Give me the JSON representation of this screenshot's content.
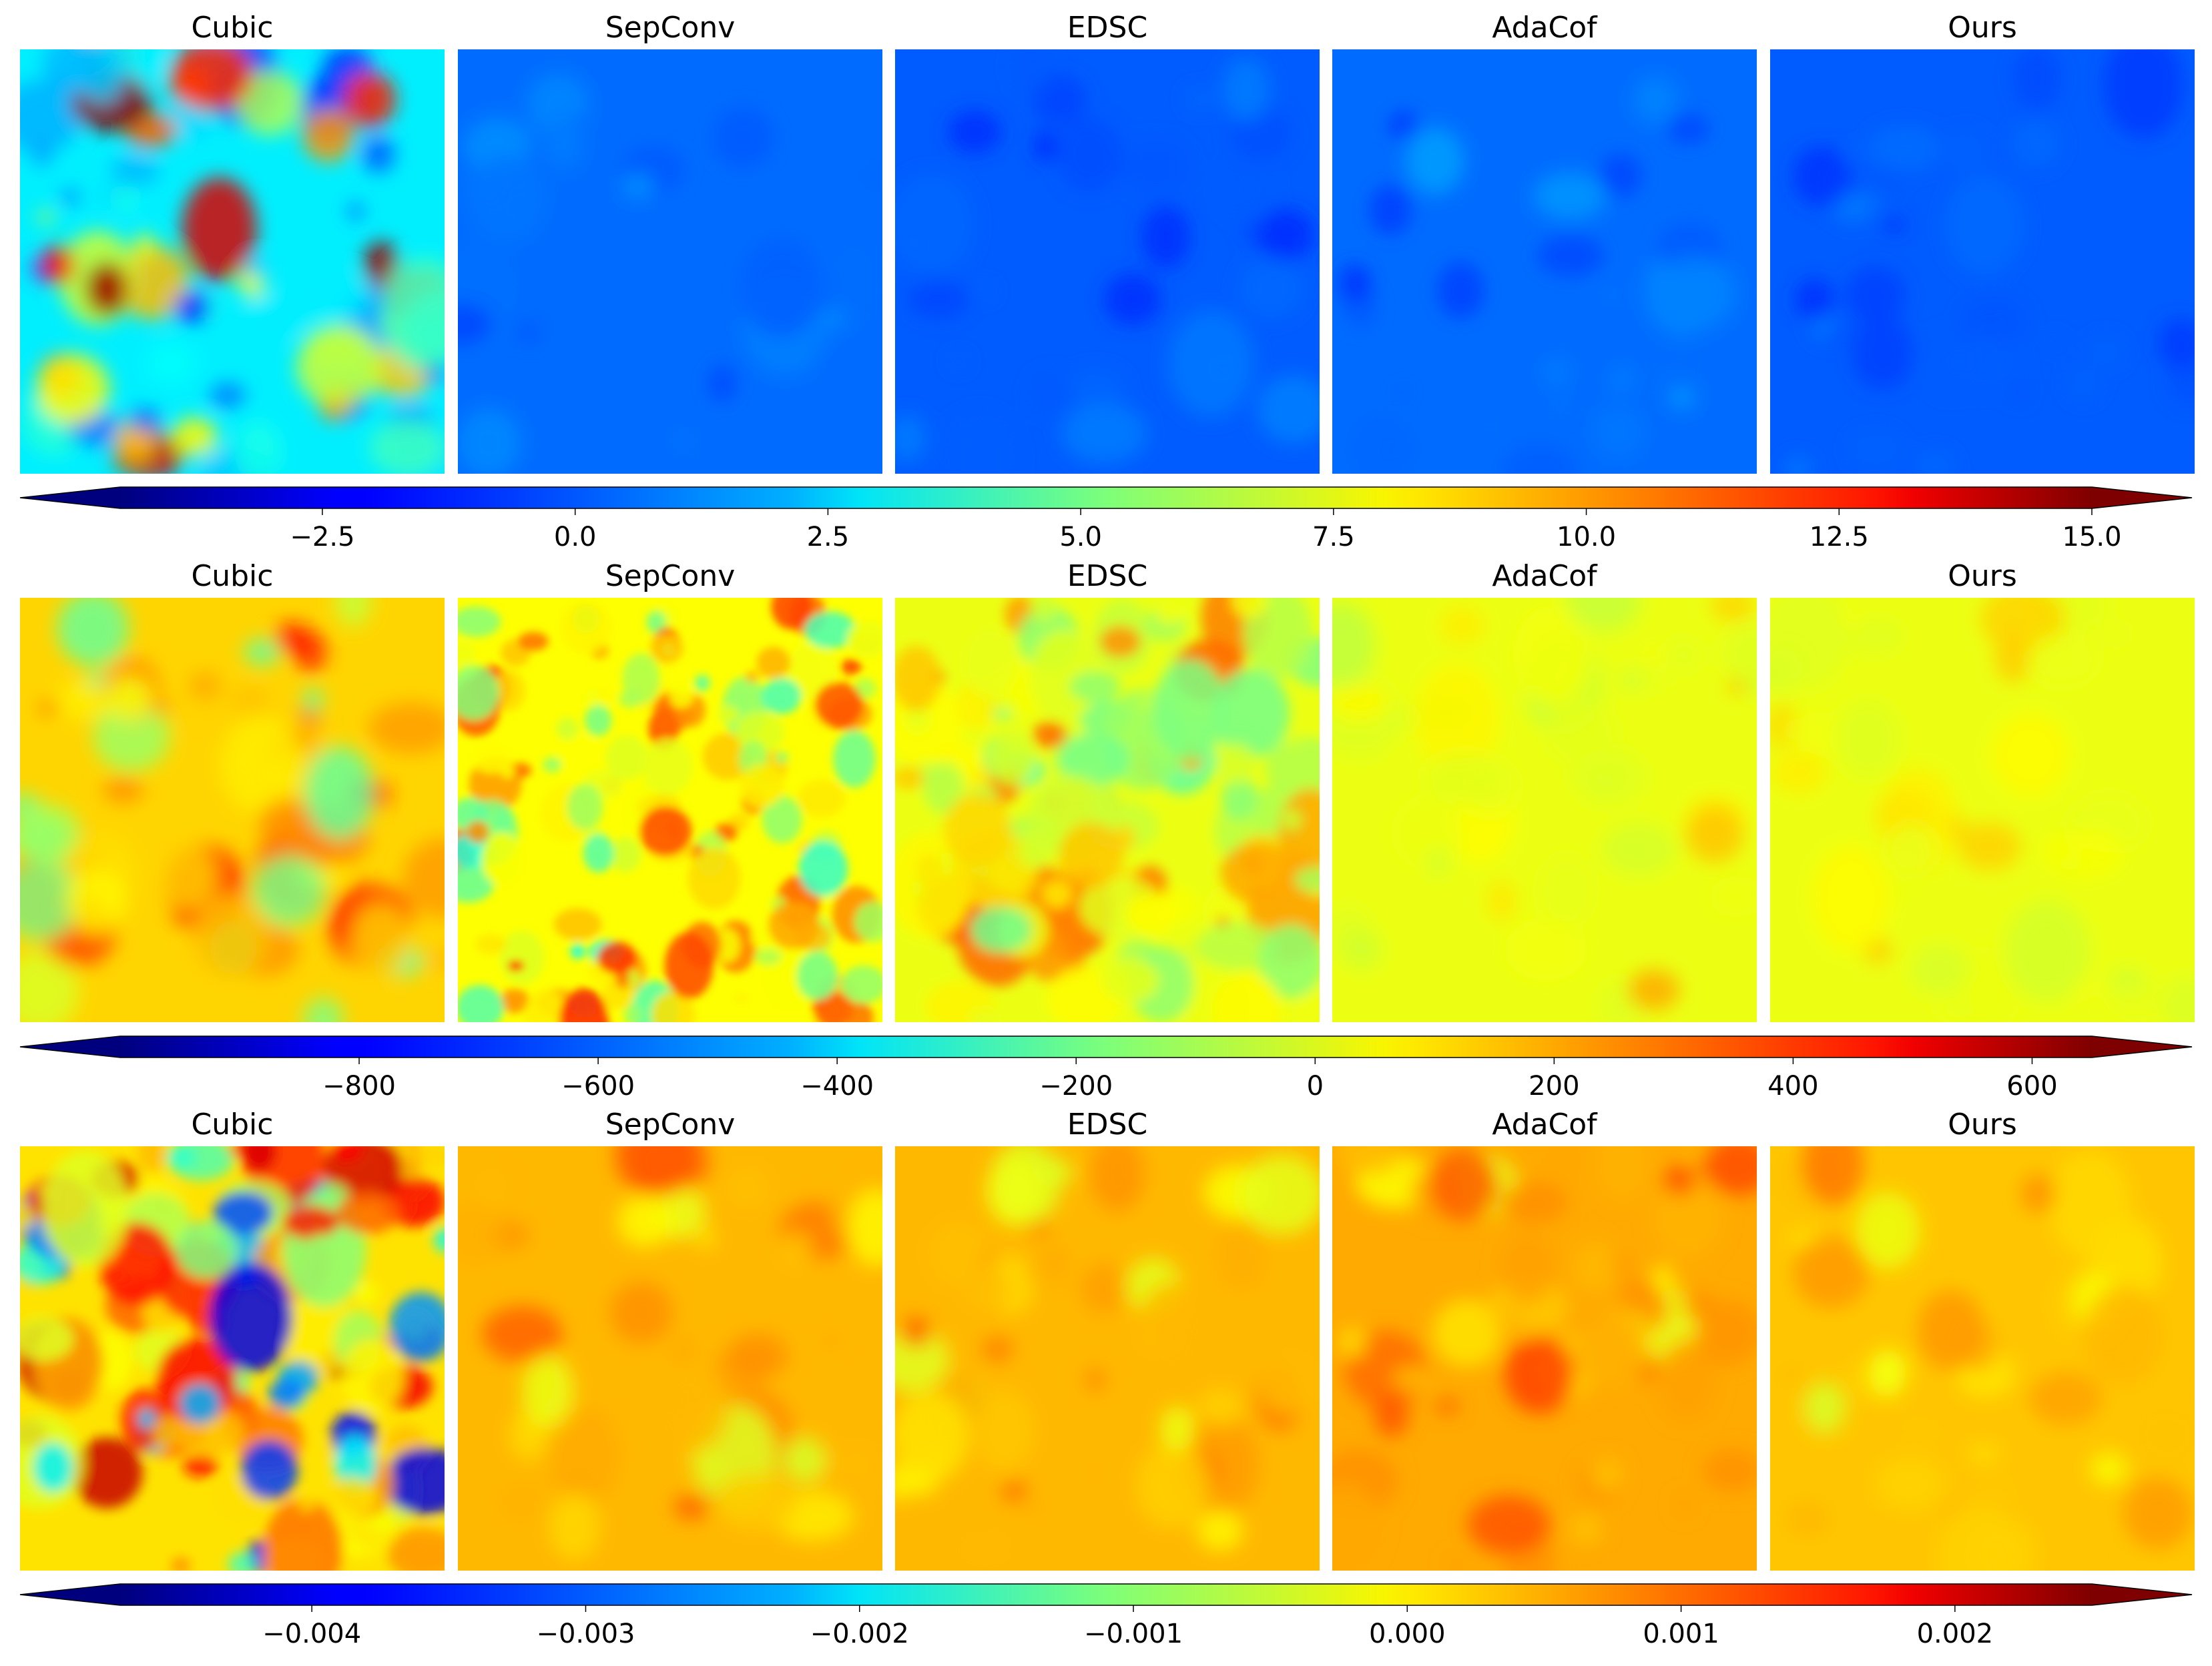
{
  "chart_data": [
    {
      "type": "heatmap",
      "row": 1,
      "panel_titles": [
        "Cubic",
        "SepConv",
        "EDSC",
        "AdaCof",
        "Ours"
      ],
      "colormap": "jet",
      "vmin": -4.5,
      "vmax": 15.0,
      "colorbar_extend": "both",
      "colorbar_ticks": [
        -2.5,
        0.0,
        2.5,
        5.0,
        7.5,
        10.0,
        12.5,
        15.0
      ],
      "colorbar_tick_labels": [
        "−2.5",
        "0.0",
        "2.5",
        "5.0",
        "7.5",
        "10.0",
        "12.5",
        "15.0"
      ],
      "panel_value_summary": [
        {
          "name": "Cubic",
          "typical": 2.5,
          "min": -1.5,
          "max": 15.0
        },
        {
          "name": "SepConv",
          "typical": 0.0,
          "min": -0.8,
          "max": 0.8
        },
        {
          "name": "EDSC",
          "typical": -0.3,
          "min": -1.5,
          "max": 0.5
        },
        {
          "name": "AdaCof",
          "typical": 0.0,
          "min": -1.2,
          "max": 1.0
        },
        {
          "name": "Ours",
          "typical": -0.3,
          "min": -1.2,
          "max": 0.5
        }
      ]
    },
    {
      "type": "heatmap",
      "row": 2,
      "panel_titles": [
        "Cubic",
        "SepConv",
        "EDSC",
        "AdaCof",
        "Ours"
      ],
      "colormap": "jet",
      "vmin": -1000,
      "vmax": 650,
      "colorbar_extend": "both",
      "colorbar_ticks": [
        -800,
        -600,
        -400,
        -200,
        0,
        200,
        400,
        600
      ],
      "colorbar_tick_labels": [
        "−800",
        "−600",
        "−400",
        "−200",
        "0",
        "200",
        "400",
        "600"
      ],
      "panel_value_summary": [
        {
          "name": "Cubic",
          "typical": 100,
          "min": -250,
          "max": 420
        },
        {
          "name": "SepConv",
          "typical": 30,
          "min": -350,
          "max": 420
        },
        {
          "name": "EDSC",
          "typical": 0,
          "min": -250,
          "max": 300
        },
        {
          "name": "AdaCof",
          "typical": 0,
          "min": -80,
          "max": 180
        },
        {
          "name": "Ours",
          "typical": 0,
          "min": -60,
          "max": 120
        }
      ]
    },
    {
      "type": "heatmap",
      "row": 3,
      "panel_titles": [
        "Cubic",
        "SepConv",
        "EDSC",
        "AdaCof",
        "Ours"
      ],
      "colormap": "jet",
      "vmin": -0.0047,
      "vmax": 0.0025,
      "colorbar_extend": "both",
      "colorbar_ticks": [
        -0.004,
        -0.003,
        -0.002,
        -0.001,
        0.0,
        0.001,
        0.002
      ],
      "colorbar_tick_labels": [
        "−0.004",
        "−0.003",
        "−0.002",
        "−0.001",
        "0.000",
        "0.001",
        "0.002"
      ],
      "panel_value_summary": [
        {
          "name": "Cubic",
          "typical": 0.0,
          "min": -0.004,
          "max": 0.002
        },
        {
          "name": "SepConv",
          "typical": 0.0003,
          "min": -0.0005,
          "max": 0.001
        },
        {
          "name": "EDSC",
          "typical": 0.0003,
          "min": -0.0005,
          "max": 0.001
        },
        {
          "name": "AdaCof",
          "typical": 0.0004,
          "min": -0.0005,
          "max": 0.0012
        },
        {
          "name": "Ours",
          "typical": 0.0002,
          "min": -0.0005,
          "max": 0.0009
        }
      ]
    }
  ]
}
